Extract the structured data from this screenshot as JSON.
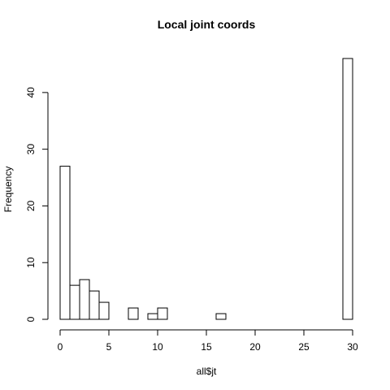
{
  "chart_data": {
    "type": "bar",
    "title": "Local joint coords",
    "xlabel": "all$jt",
    "ylabel": "Frequency",
    "bin_width": 1,
    "bins": [
      {
        "start": 0,
        "end": 1,
        "count": 27
      },
      {
        "start": 1,
        "end": 2,
        "count": 6
      },
      {
        "start": 2,
        "end": 3,
        "count": 7
      },
      {
        "start": 3,
        "end": 4,
        "count": 5
      },
      {
        "start": 4,
        "end": 5,
        "count": 3
      },
      {
        "start": 5,
        "end": 6,
        "count": 0
      },
      {
        "start": 6,
        "end": 7,
        "count": 0
      },
      {
        "start": 7,
        "end": 8,
        "count": 2
      },
      {
        "start": 8,
        "end": 9,
        "count": 0
      },
      {
        "start": 9,
        "end": 10,
        "count": 1
      },
      {
        "start": 10,
        "end": 11,
        "count": 2
      },
      {
        "start": 11,
        "end": 12,
        "count": 0
      },
      {
        "start": 12,
        "end": 13,
        "count": 0
      },
      {
        "start": 13,
        "end": 14,
        "count": 0
      },
      {
        "start": 14,
        "end": 15,
        "count": 0
      },
      {
        "start": 15,
        "end": 16,
        "count": 0
      },
      {
        "start": 16,
        "end": 17,
        "count": 1
      },
      {
        "start": 17,
        "end": 18,
        "count": 0
      },
      {
        "start": 18,
        "end": 19,
        "count": 0
      },
      {
        "start": 19,
        "end": 20,
        "count": 0
      },
      {
        "start": 20,
        "end": 21,
        "count": 0
      },
      {
        "start": 21,
        "end": 22,
        "count": 0
      },
      {
        "start": 22,
        "end": 23,
        "count": 0
      },
      {
        "start": 23,
        "end": 24,
        "count": 0
      },
      {
        "start": 24,
        "end": 25,
        "count": 0
      },
      {
        "start": 25,
        "end": 26,
        "count": 0
      },
      {
        "start": 26,
        "end": 27,
        "count": 0
      },
      {
        "start": 27,
        "end": 28,
        "count": 0
      },
      {
        "start": 28,
        "end": 29,
        "count": 0
      },
      {
        "start": 29,
        "end": 30,
        "count": 46
      }
    ],
    "xlim": [
      0,
      30
    ],
    "ylim": [
      0,
      46
    ],
    "x_ticks": [
      0,
      5,
      10,
      15,
      20,
      25,
      30
    ],
    "y_ticks": [
      0,
      10,
      20,
      30,
      40
    ],
    "bar_fill": "#ffffff",
    "bar_stroke": "#000000",
    "grid": false
  }
}
